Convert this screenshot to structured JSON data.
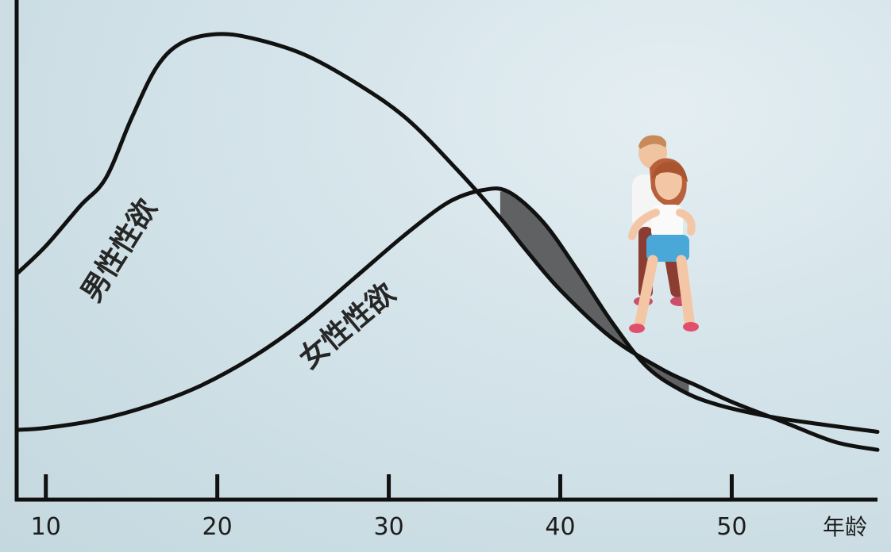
{
  "chart_data": {
    "type": "line",
    "title": "",
    "xlabel": "年龄",
    "ylabel": "",
    "x_ticks": [
      10,
      20,
      30,
      40,
      50
    ],
    "xlim": [
      8.3,
      58.5
    ],
    "ylim": [
      0,
      100
    ],
    "grid": false,
    "legend": "none",
    "series": [
      {
        "name": "男性性欲",
        "x": [
          8.3,
          10,
          12,
          13.5,
          15,
          16.5,
          18,
          20,
          22,
          25,
          28,
          31,
          34,
          36.5,
          38,
          40,
          43,
          46,
          48,
          50,
          53,
          56,
          58.5
        ],
        "y": [
          39,
          46,
          56,
          63,
          78,
          91,
          97,
          99,
          98,
          94,
          87,
          78,
          65,
          53,
          45,
          35,
          23,
          15,
          11,
          7,
          2,
          -3,
          -5
        ]
      },
      {
        "name": "女性性欲",
        "x": [
          8.3,
          10,
          13,
          16,
          19,
          22,
          25,
          28,
          31,
          33.5,
          35.5,
          37,
          39,
          41,
          43,
          45,
          47,
          49,
          52,
          55,
          58.5
        ],
        "y": [
          0,
          0.5,
          2.5,
          6,
          11,
          18,
          27,
          38,
          49,
          57,
          60,
          59.5,
          52,
          40,
          27,
          16,
          10,
          6.5,
          3.5,
          1.5,
          -0.5
        ]
      }
    ],
    "shaded_region": {
      "between": [
        "女性性欲",
        "男性性欲"
      ],
      "x_range": [
        36.5,
        47.5
      ],
      "color": "#5f6163"
    },
    "colors": {
      "line": "#111111",
      "axis": "#111111",
      "shade": "#5f6163"
    },
    "illustration": "cartoon-couple-piggyback"
  }
}
